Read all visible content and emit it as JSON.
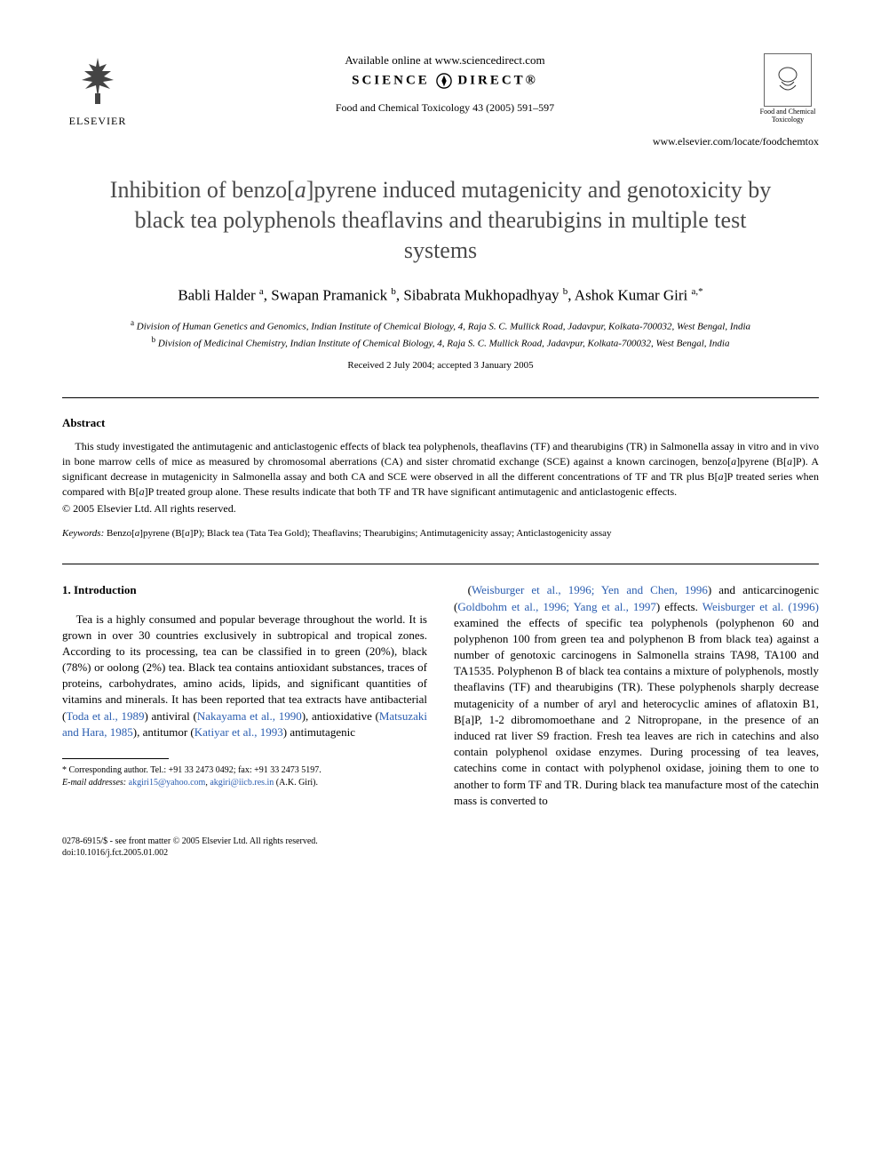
{
  "header": {
    "publisher": "ELSEVIER",
    "available_online": "Available online at www.sciencedirect.com",
    "science_direct_left": "SCIENCE",
    "science_direct_right": "DIRECT®",
    "journal_ref": "Food and Chemical Toxicology 43 (2005) 591–597",
    "journal_logo_label": "Food and Chemical Toxicology",
    "locate_url": "www.elsevier.com/locate/foodchemtox"
  },
  "title": "Inhibition of benzo[a]pyrene induced mutagenicity and genotoxicity by black tea polyphenols theaflavins and thearubigins in multiple test systems",
  "authors_html": "Babli Halder <sup>a</sup>, Swapan Pramanick <sup>b</sup>, Sibabrata Mukhopadhyay <sup>b</sup>, Ashok Kumar Giri <sup>a,*</sup>",
  "affiliations": {
    "a": "Division of Human Genetics and Genomics, Indian Institute of Chemical Biology, 4, Raja S. C. Mullick Road, Jadavpur, Kolkata-700032, West Bengal, India",
    "b": "Division of Medicinal Chemistry, Indian Institute of Chemical Biology, 4, Raja S. C. Mullick Road, Jadavpur, Kolkata-700032, West Bengal, India"
  },
  "received": "Received 2 July 2004; accepted 3 January 2005",
  "abstract": {
    "heading": "Abstract",
    "body": "This study investigated the antimutagenic and anticlastogenic effects of black tea polyphenols, theaflavins (TF) and thearubigins (TR) in Salmonella assay in vitro and in vivo in bone marrow cells of mice as measured by chromosomal aberrations (CA) and sister chromatid exchange (SCE) against a known carcinogen, benzo[a]pyrene (B[a]P). A significant decrease in mutagenicity in Salmonella assay and both CA and SCE were observed in all the different concentrations of TF and TR plus B[a]P treated series when compared with B[a]P treated group alone. These results indicate that both TF and TR have significant antimutagenic and anticlastogenic effects.",
    "copyright": "© 2005 Elsevier Ltd. All rights reserved."
  },
  "keywords": {
    "label": "Keywords:",
    "text": "Benzo[a]pyrene (B[a]P); Black tea (Tata Tea Gold); Theaflavins; Thearubigins; Antimutagenicity assay; Anticlastogenicity assay"
  },
  "intro": {
    "heading": "1. Introduction",
    "col1_html": "Tea is a highly consumed and popular beverage throughout the world. It is grown in over 30 countries exclusively in subtropical and tropical zones. According to its processing, tea can be classified in to green (20%), black (78%) or oolong (2%) tea. Black tea contains antioxidant substances, traces of proteins, carbohydrates, amino acids, lipids, and significant quantities of vitamins and minerals. It has been reported that tea extracts have antibacterial (<span class=\"ref\">Toda et al., 1989</span>) antiviral (<span class=\"ref\">Nakayama et al., 1990</span>), antioxidative (<span class=\"ref\">Matsuzaki and Hara, 1985</span>), antitumor (<span class=\"ref\">Katiyar et al., 1993</span>) antimutagenic",
    "col2_html": "(<span class=\"ref\">Weisburger et al., 1996; Yen and Chen, 1996</span>) and anticarcinogenic (<span class=\"ref\">Goldbohm et al., 1996; Yang et al., 1997</span>) effects. <span class=\"ref\">Weisburger et al. (1996)</span> examined the effects of specific tea polyphenols (polyphenon 60 and polyphenon 100 from green tea and polyphenon B from black tea) against a number of genotoxic carcinogens in Salmonella strains TA98, TA100 and TA1535. Polyphenon B of black tea contains a mixture of polyphenols, mostly theaflavins (TF) and thearubigins (TR). These polyphenols sharply decrease mutagenicity of a number of aryl and heterocyclic amines of aflatoxin B1, B[a]P, 1-2 dibromomoethane and 2 Nitropropane, in the presence of an induced rat liver S9 fraction. Fresh tea leaves are rich in catechins and also contain polyphenol oxidase enzymes. During processing of tea leaves, catechins come in contact with polyphenol oxidase, joining them to one to another to form TF and TR. During black tea manufacture most of the catechin mass is converted to"
  },
  "footnotes": {
    "corresponding": "Corresponding author. Tel.: +91 33 2473 0492; fax: +91 33 2473 5197.",
    "email_label": "E-mail addresses:",
    "email1": "akgiri15@yahoo.com",
    "email2": "akgiri@iicb.res.in",
    "email_owner": "(A.K. Giri)."
  },
  "bottom": {
    "line1": "0278-6915/$ - see front matter © 2005 Elsevier Ltd. All rights reserved.",
    "line2": "doi:10.1016/j.fct.2005.01.002"
  },
  "colors": {
    "text": "#000000",
    "title": "#4a4a4a",
    "link": "#2a5db0",
    "background": "#ffffff"
  }
}
